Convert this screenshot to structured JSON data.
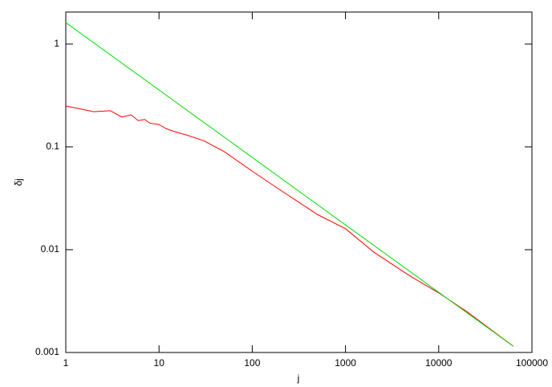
{
  "chart_data": {
    "type": "line",
    "xlabel": "j",
    "ylabel": "δj",
    "xscale": "log",
    "yscale": "log",
    "xlim": [
      1,
      100000
    ],
    "ylim": [
      0.001,
      2.05
    ],
    "xticks": [
      1,
      10,
      100,
      1000,
      10000,
      100000
    ],
    "yticks": [
      0.001,
      0.01,
      0.1,
      1
    ],
    "series": [
      {
        "color": "#ff0000",
        "x": [
          1,
          2,
          3,
          4,
          5,
          6,
          7,
          8,
          10,
          12,
          15,
          20,
          30,
          50,
          100,
          200,
          500,
          1000,
          2000,
          5000,
          10000,
          20000,
          63000
        ],
        "values": [
          0.25,
          0.22,
          0.225,
          0.195,
          0.205,
          0.18,
          0.185,
          0.17,
          0.165,
          0.15,
          0.14,
          0.13,
          0.115,
          0.09,
          0.058,
          0.038,
          0.022,
          0.016,
          0.0095,
          0.0055,
          0.0038,
          0.0025,
          0.00115
        ]
      },
      {
        "color": "#00dd00",
        "x": [
          1,
          63000
        ],
        "values": [
          1.62,
          0.00115
        ]
      }
    ]
  }
}
